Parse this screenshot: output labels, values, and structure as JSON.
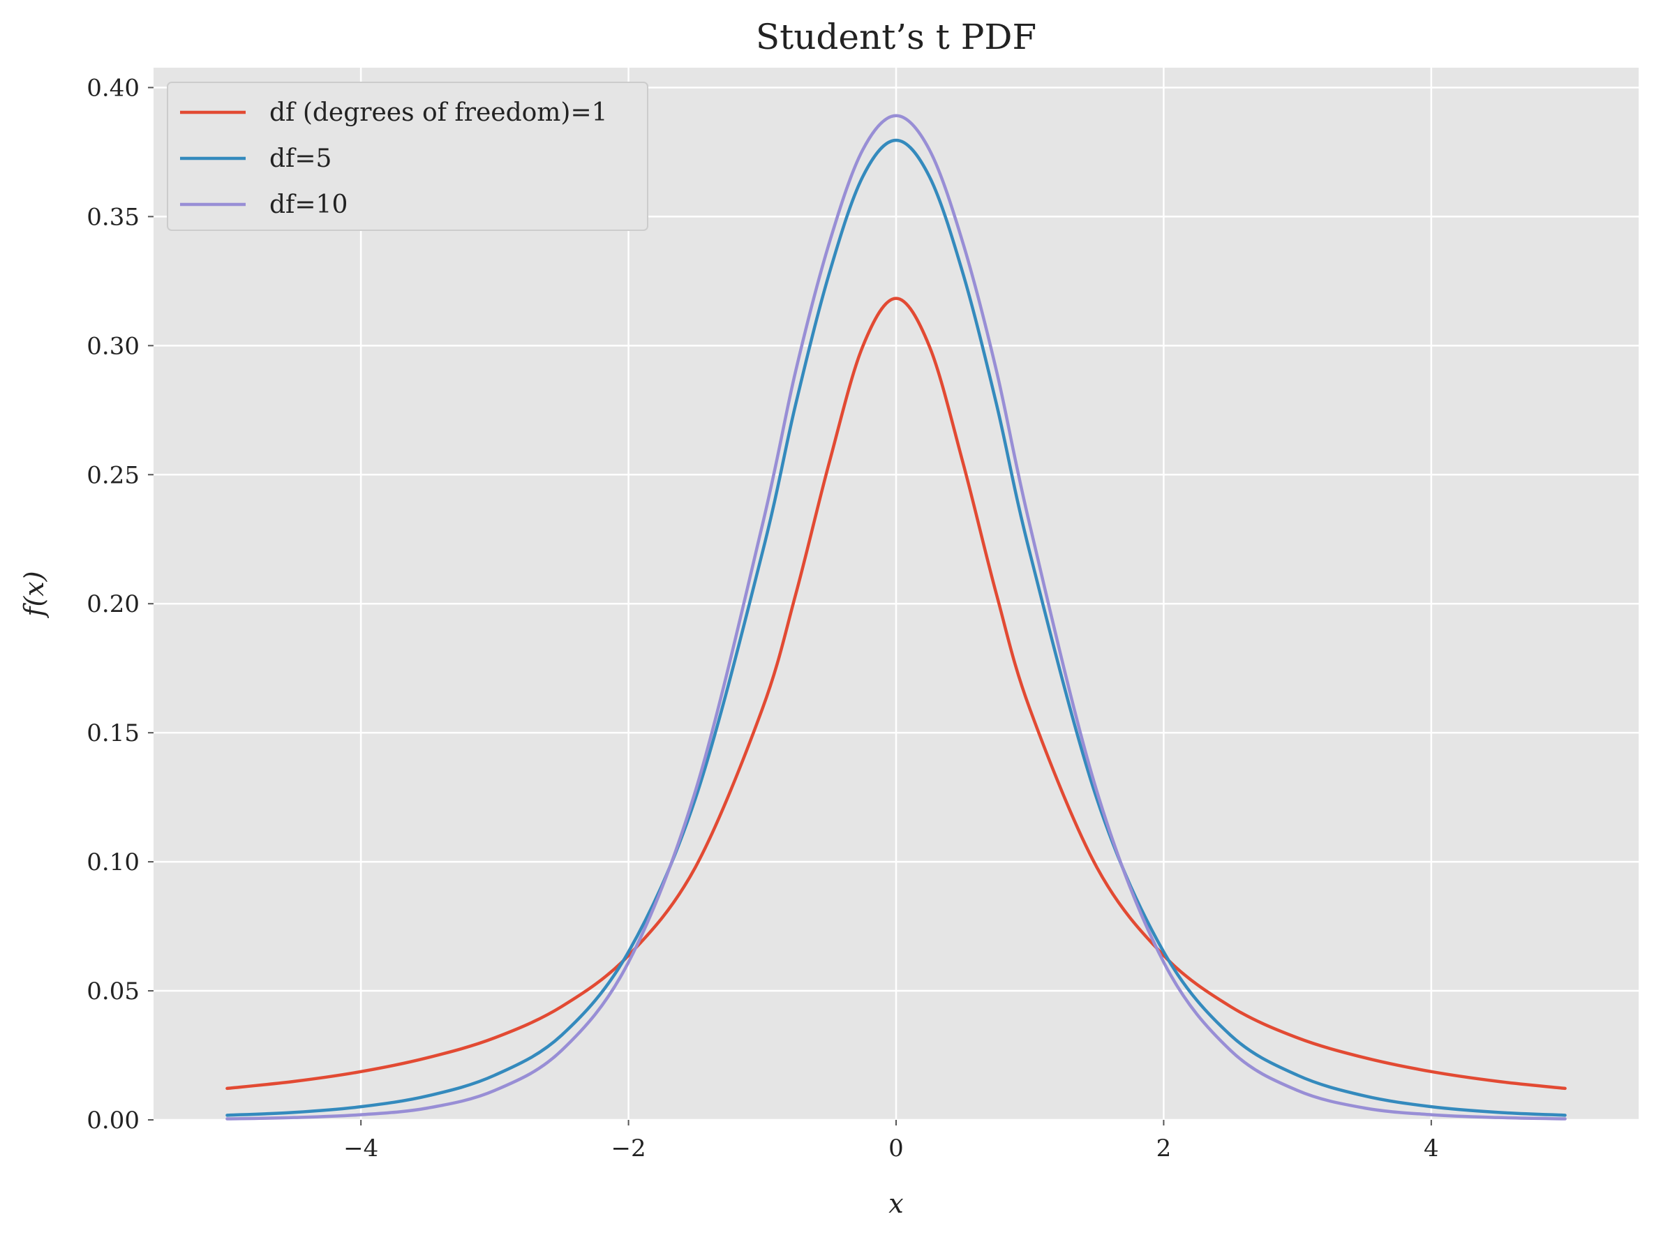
{
  "chart_data": {
    "type": "line",
    "title": "Student’s t PDF",
    "xlabel": "x",
    "ylabel": "f(x)",
    "xlim": [
      -5.55,
      5.55
    ],
    "ylim": [
      0.0,
      0.4077
    ],
    "x_ticks": [
      -4,
      -2,
      0,
      2,
      4
    ],
    "x_tick_labels": [
      "−4",
      "−2",
      "0",
      "2",
      "4"
    ],
    "y_ticks": [
      0.0,
      0.05,
      0.1,
      0.15,
      0.2,
      0.25,
      0.3,
      0.35,
      0.4
    ],
    "y_tick_labels": [
      "0.00",
      "0.05",
      "0.10",
      "0.15",
      "0.20",
      "0.25",
      "0.30",
      "0.35",
      "0.40"
    ],
    "grid": true,
    "legend_position": "top-left",
    "x": [
      -5.0,
      -4.5,
      -4.0,
      -3.5,
      -3.0,
      -2.5,
      -2.0,
      -1.5,
      -1.0,
      -0.75,
      -0.5,
      -0.25,
      0.0,
      0.25,
      0.5,
      0.75,
      1.0,
      1.5,
      2.0,
      2.5,
      3.0,
      3.5,
      4.0,
      4.5,
      5.0
    ],
    "series": [
      {
        "name": "df (degrees of freedom)=1",
        "color": "#E24A33",
        "values": [
          0.0122,
          0.0149,
          0.0187,
          0.0241,
          0.0318,
          0.0439,
          0.0637,
          0.0979,
          0.1592,
          0.2037,
          0.2546,
          0.2996,
          0.3183,
          0.2996,
          0.2546,
          0.2037,
          0.1592,
          0.0979,
          0.0637,
          0.0439,
          0.0318,
          0.0241,
          0.0187,
          0.0149,
          0.0122
        ]
      },
      {
        "name": "df=5",
        "color": "#348ABD",
        "values": [
          0.0018,
          0.0029,
          0.0051,
          0.0093,
          0.0173,
          0.0328,
          0.0651,
          0.1245,
          0.2197,
          0.2774,
          0.3279,
          0.3654,
          0.3796,
          0.3654,
          0.3279,
          0.2774,
          0.2197,
          0.1245,
          0.0651,
          0.0328,
          0.0173,
          0.0093,
          0.0051,
          0.0029,
          0.0018
        ]
      },
      {
        "name": "df=10",
        "color": "#988ED5",
        "values": [
          0.0004,
          0.0009,
          0.002,
          0.0046,
          0.0114,
          0.0269,
          0.0611,
          0.1274,
          0.2304,
          0.2903,
          0.3397,
          0.3758,
          0.3891,
          0.3758,
          0.3397,
          0.2903,
          0.2304,
          0.1274,
          0.0611,
          0.0269,
          0.0114,
          0.0046,
          0.002,
          0.0009,
          0.0004
        ]
      }
    ]
  },
  "colors": {
    "plot_background": "#E5E5E5",
    "grid": "#FFFFFF",
    "text": "#222222",
    "legend_frame": "#CCCCCC"
  }
}
